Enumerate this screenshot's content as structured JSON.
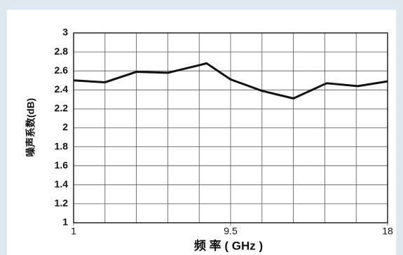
{
  "chart_data": {
    "type": "line",
    "x_label": "频 率 ( GHz )",
    "y_label": "噪声系数(dB)",
    "x": [
      1,
      2.7,
      4.4,
      6.1,
      7.8,
      8.2,
      9.5,
      11.2,
      12.9,
      14.7,
      16.4,
      18
    ],
    "series": [
      {
        "color": "#111111",
        "values": [
          2.5,
          2.48,
          2.59,
          2.58,
          2.66,
          2.68,
          2.51,
          2.39,
          2.31,
          2.47,
          2.44,
          2.49
        ]
      }
    ],
    "xlim": [
      1,
      18
    ],
    "xticks": [
      1,
      9.5,
      18
    ],
    "ylim": [
      1,
      3
    ],
    "yticks": [
      1,
      1.2,
      1.4,
      1.6,
      1.8,
      2,
      2.2,
      2.4,
      2.6,
      2.8,
      3
    ],
    "grid": true
  }
}
